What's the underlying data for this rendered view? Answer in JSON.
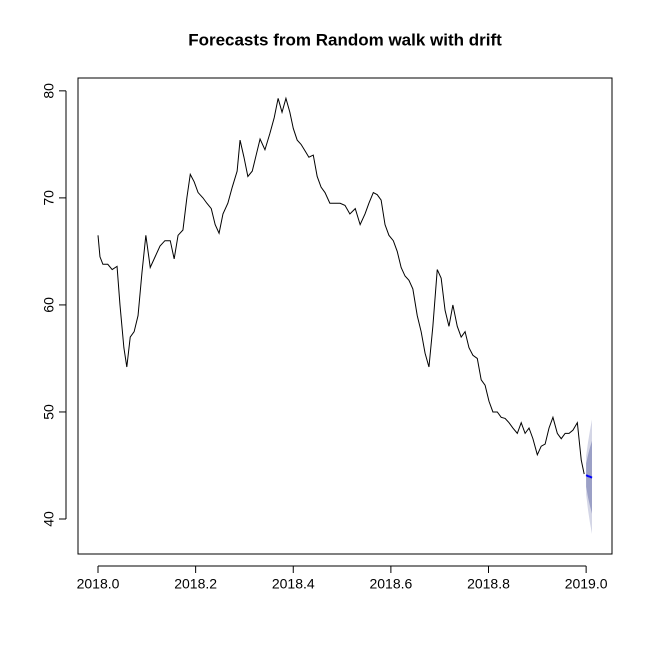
{
  "chart_data": {
    "type": "line",
    "title": "Forecasts from Random walk with drift",
    "x": [
      2018.0,
      2018.004,
      2018.01,
      2018.02,
      2018.029,
      2018.039,
      2018.045,
      2018.053,
      2018.059,
      2018.066,
      2018.074,
      2018.082,
      2018.09,
      2018.098,
      2018.107,
      2018.117,
      2018.127,
      2018.137,
      2018.148,
      2018.156,
      2018.164,
      2018.174,
      2018.182,
      2018.189,
      2018.197,
      2018.205,
      2018.215,
      2018.223,
      2018.232,
      2018.24,
      2018.248,
      2018.256,
      2018.266,
      2018.275,
      2018.285,
      2018.291,
      2018.299,
      2018.307,
      2018.316,
      2018.324,
      2018.332,
      2018.342,
      2018.352,
      2018.361,
      2018.369,
      2018.377,
      2018.385,
      2018.393,
      2018.4,
      2018.408,
      2018.416,
      2018.424,
      2018.432,
      2018.441,
      2018.449,
      2018.457,
      2018.465,
      2018.475,
      2018.486,
      2018.496,
      2018.506,
      2018.516,
      2018.527,
      2018.537,
      2018.547,
      2018.555,
      2018.564,
      2018.572,
      2018.58,
      2018.588,
      2018.596,
      2018.605,
      2018.613,
      2018.621,
      2018.629,
      2018.637,
      2018.645,
      2018.654,
      2018.662,
      2018.67,
      2018.678,
      2018.686,
      2018.695,
      2018.703,
      2018.711,
      2018.719,
      2018.727,
      2018.736,
      2018.744,
      2018.752,
      2018.76,
      2018.768,
      2018.777,
      2018.785,
      2018.793,
      2018.801,
      2018.809,
      2018.818,
      2018.826,
      2018.834,
      2018.842,
      2018.85,
      2018.859,
      2018.867,
      2018.875,
      2018.883,
      2018.891,
      2018.9,
      2018.908,
      2018.916,
      2018.924,
      2018.932,
      2018.941,
      2018.949,
      2018.957,
      2018.965,
      2018.973,
      2018.982,
      2018.99,
      2018.996
    ],
    "series": [
      {
        "color": "#000000",
        "values": [
          66.5,
          64.5,
          63.8,
          63.8,
          63.3,
          63.6,
          60,
          56,
          54.2,
          57,
          57.5,
          59,
          63,
          66.5,
          63.5,
          64.5,
          65.5,
          66,
          66,
          64.3,
          66.5,
          67,
          70,
          72.2,
          71.5,
          70.5,
          70,
          69.5,
          69,
          67.5,
          66.7,
          68.5,
          69.5,
          71,
          72.5,
          75.4,
          73.8,
          72,
          72.5,
          74,
          75.5,
          74.5,
          76,
          77.5,
          79.3,
          78,
          79.3,
          78,
          76.5,
          75.4,
          75,
          74.4,
          73.8,
          74,
          72,
          71,
          70.5,
          69.5,
          69.5,
          69.5,
          69.3,
          68.5,
          69,
          67.5,
          68.5,
          69.5,
          70.5,
          70.3,
          69.8,
          67.5,
          66.5,
          66,
          65,
          63.5,
          62.7,
          62.3,
          61.5,
          59,
          57.5,
          55.5,
          54.2,
          58,
          63.3,
          62.5,
          59.5,
          58,
          60,
          58,
          57,
          57.5,
          56,
          55.3,
          55,
          53,
          52.5,
          51,
          50,
          50,
          49.5,
          49.4,
          49,
          48.5,
          48,
          49,
          48,
          48.5,
          47.5,
          46,
          46.8,
          47,
          48.5,
          49.5,
          48,
          47.5,
          48,
          48,
          48.3,
          49,
          45.5,
          44.2
        ]
      }
    ],
    "forecast": {
      "x": [
        2019.0,
        2019.004,
        2019.008,
        2019.012
      ],
      "mean": [
        44.1,
        44.0,
        43.95,
        43.85
      ],
      "lower80": [
        43.0,
        42.0,
        41.2,
        40.5
      ],
      "upper80": [
        45.2,
        46.0,
        46.7,
        47.3
      ],
      "lower95": [
        42.3,
        40.8,
        39.6,
        38.6
      ],
      "upper95": [
        45.9,
        47.2,
        48.3,
        49.3
      ],
      "color": "#0000ff",
      "band80_color": "#9ba0c6",
      "band95_color": "#d4d6e6"
    },
    "xlim": [
      2017.959,
      2019.053
    ],
    "ylim": [
      36.73,
      81.2
    ],
    "xticks": [
      {
        "value": 2018.0,
        "label": "2018.0"
      },
      {
        "value": 2018.2,
        "label": "2018.2"
      },
      {
        "value": 2018.4,
        "label": "2018.4"
      },
      {
        "value": 2018.6,
        "label": "2018.6"
      },
      {
        "value": 2018.8,
        "label": "2018.8"
      },
      {
        "value": 2019.0,
        "label": "2019.0"
      }
    ],
    "yticks": [
      40,
      50,
      60,
      70,
      80
    ]
  }
}
